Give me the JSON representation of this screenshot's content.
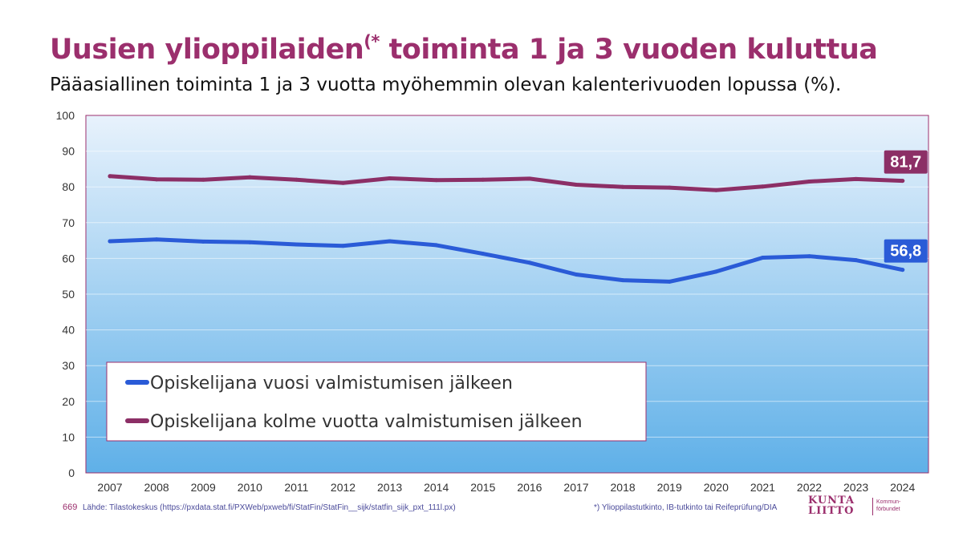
{
  "title": {
    "main_before": "Uusien ylioppilaiden",
    "sup": "(*",
    "main_after": " toiminta 1 ja 3 vuoden kuluttua"
  },
  "subtitle": "Pääasiallinen toiminta 1 ja 3 vuotta myöhemmin olevan kalenterivuoden lopussa (%).",
  "colors": {
    "accent": "#9b2f6d",
    "blue_series": "#2a5bd7",
    "purple_series": "#8c2f66",
    "plot_bg_top": "#e8f2fc",
    "plot_bg_bottom": "#5fb0e8"
  },
  "chart_data": {
    "type": "line",
    "x": [
      2007,
      2008,
      2009,
      2010,
      2011,
      2012,
      2013,
      2014,
      2015,
      2016,
      2017,
      2018,
      2019,
      2020,
      2021,
      2022,
      2023,
      2024
    ],
    "ylim": [
      0,
      100
    ],
    "yticks": [
      0,
      10,
      20,
      30,
      40,
      50,
      60,
      70,
      80,
      90,
      100
    ],
    "grid": true,
    "legend_placement": "bottom-left",
    "series": [
      {
        "name": "Opiskelijana vuosi valmistumisen jälkeen",
        "color": "#2a5bd7",
        "values": [
          64.8,
          65.3,
          64.7,
          64.5,
          63.9,
          63.5,
          64.8,
          63.7,
          61.3,
          58.8,
          55.5,
          53.9,
          53.5,
          56.3,
          60.2,
          60.6,
          59.5,
          56.8
        ],
        "end_label": "56,8"
      },
      {
        "name": "Opiskelijana kolme vuotta valmistumisen jälkeen",
        "color": "#8c2f66",
        "values": [
          83.0,
          82.1,
          82.0,
          82.7,
          82.0,
          81.1,
          82.4,
          81.9,
          82.0,
          82.3,
          80.6,
          80.0,
          79.8,
          79.1,
          80.1,
          81.5,
          82.2,
          81.7
        ],
        "end_label": "81,7"
      }
    ]
  },
  "footer": {
    "page_number": "669",
    "source": "Lähde: Tilastokeskus (https://pxdata.stat.fi/PXWeb/pxweb/fi/StatFin/StatFin__sijk/statfin_sijk_pxt_111l.px)",
    "footnote": "*) Ylioppilastutkinto, IB-tutkinto tai Reifeprüfung/DIA"
  },
  "logo": {
    "line1": "KUNTA",
    "line2": "LIITTO",
    "sub1": "Kommun-",
    "sub2": "förbundet"
  }
}
